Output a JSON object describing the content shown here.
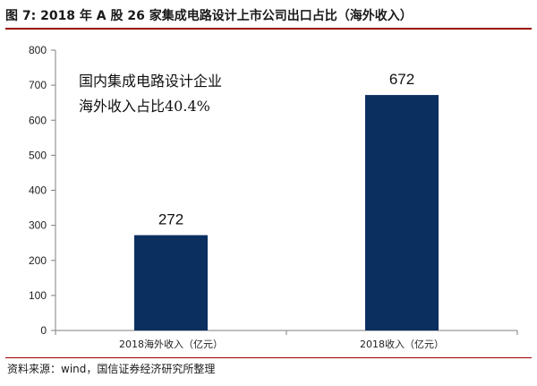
{
  "figure": {
    "title": "图 7:  2018 年 A 股 26 家集成电路设计上市公司出口占比（海外收入）",
    "source": "资料来源：wind，国信证券经济研究所整理"
  },
  "chart_data": {
    "type": "bar",
    "categories": [
      "2018海外收入（亿元）",
      "2018收入（亿元）"
    ],
    "values": [
      272,
      672
    ],
    "data_labels": [
      "272",
      "672"
    ],
    "ylim": [
      0,
      800
    ],
    "yticks": [
      0,
      100,
      200,
      300,
      400,
      500,
      600,
      700,
      800
    ],
    "annotation": [
      "国内集成电路设计企业",
      "海外收入占比40.4%"
    ],
    "bar_color": "#0b2f5f",
    "grid": false,
    "legend": "none"
  }
}
